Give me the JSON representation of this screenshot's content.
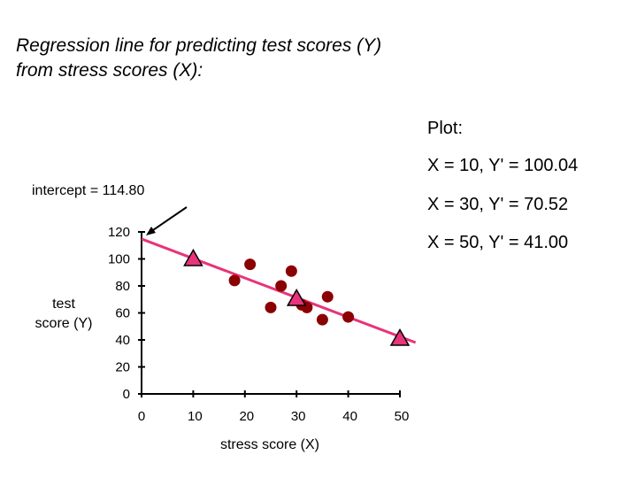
{
  "title_lines": [
    "Regression line for predicting test scores (Y)",
    "from stress scores (X):"
  ],
  "plot_label": "Plot:",
  "plot_points_text": [
    "X = 10, Y' = 100.04",
    "X = 30, Y' = 70.52",
    "X = 50, Y' = 41.00"
  ],
  "intercept_label": "intercept = 114.80",
  "colors": {
    "points": "#8b0000",
    "line": "#e8347a",
    "predicted_markers": "#e8347a",
    "axis": "#000000"
  },
  "chart_data": {
    "type": "scatter",
    "xlabel": "stress score (X)",
    "ylabel_lines": [
      "test",
      "score (Y)"
    ],
    "xlim": [
      0,
      50
    ],
    "ylim": [
      0,
      120
    ],
    "xticks": [
      0,
      10,
      20,
      30,
      40,
      50
    ],
    "yticks": [
      0,
      20,
      40,
      60,
      80,
      100,
      120
    ],
    "grid": false,
    "points": [
      {
        "x": 18,
        "y": 84
      },
      {
        "x": 21,
        "y": 96
      },
      {
        "x": 25,
        "y": 64
      },
      {
        "x": 27,
        "y": 80
      },
      {
        "x": 29,
        "y": 91
      },
      {
        "x": 31,
        "y": 66
      },
      {
        "x": 32,
        "y": 64
      },
      {
        "x": 35,
        "y": 55
      },
      {
        "x": 36,
        "y": 72
      },
      {
        "x": 40,
        "y": 57
      }
    ],
    "regression_line": {
      "intercept": 114.8,
      "slope": -1.476,
      "x_range": [
        0,
        52
      ]
    },
    "predicted_points": [
      {
        "x": 10,
        "y": 100.04
      },
      {
        "x": 30,
        "y": 70.52
      },
      {
        "x": 50,
        "y": 41.0
      }
    ]
  }
}
